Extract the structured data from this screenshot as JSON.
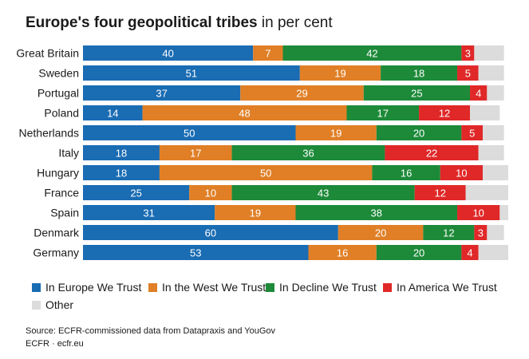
{
  "title": {
    "bold": "Europe's four geopolitical tribes",
    "light": "in per cent"
  },
  "colors": {
    "In Europe We Trust": "#1a6cb3",
    "In the West We Trust": "#e07f26",
    "In Decline We Trust": "#1d8a39",
    "In America We Trust": "#e02828",
    "Other": "#dcdcdc"
  },
  "chart_data": {
    "type": "bar",
    "orientation": "horizontal",
    "stacked": true,
    "xlim": [
      0,
      100
    ],
    "grid": false,
    "legend_position": "bottom",
    "categories": [
      "Great Britain",
      "Sweden",
      "Portugal",
      "Poland",
      "Netherlands",
      "Italy",
      "Hungary",
      "France",
      "Spain",
      "Denmark",
      "Germany"
    ],
    "series": [
      {
        "name": "In Europe We Trust",
        "values": [
          40,
          51,
          37,
          14,
          50,
          18,
          18,
          25,
          31,
          60,
          53
        ]
      },
      {
        "name": "In the West We Trust",
        "values": [
          7,
          19,
          29,
          48,
          19,
          17,
          50,
          10,
          19,
          20,
          16
        ]
      },
      {
        "name": "In Decline We Trust",
        "values": [
          42,
          18,
          25,
          17,
          20,
          36,
          16,
          43,
          38,
          12,
          20
        ]
      },
      {
        "name": "In America We Trust",
        "values": [
          3,
          5,
          4,
          12,
          5,
          22,
          10,
          12,
          10,
          3,
          4
        ]
      },
      {
        "name": "Other",
        "values": [
          7,
          6,
          4,
          7,
          5,
          6,
          6,
          10,
          2,
          4,
          7
        ]
      }
    ],
    "label_other": false
  },
  "legend": [
    {
      "label": "In Europe We Trust",
      "color": "#1a6cb3"
    },
    {
      "label": "In the West We Trust",
      "color": "#e07f26"
    },
    {
      "label": "In Decline We Trust",
      "color": "#1d8a39"
    },
    {
      "label": "In America We Trust",
      "color": "#e02828"
    },
    {
      "label": "Other",
      "color": "#dcdcdc"
    }
  ],
  "source": {
    "line1": "Source: ECFR-commissioned data from Datapraxis and YouGov",
    "line2": "ECFR · ecfr.eu"
  }
}
